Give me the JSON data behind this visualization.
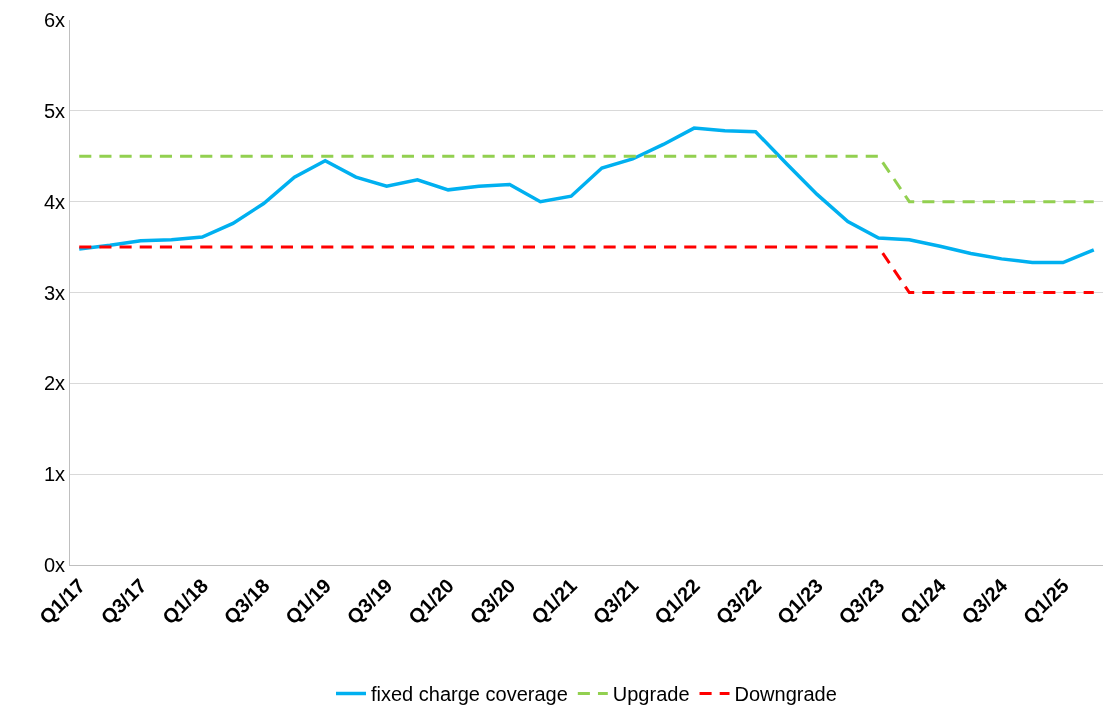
{
  "chart_data": {
    "type": "line",
    "categories": [
      "Q1/17",
      null,
      "Q3/17",
      null,
      "Q1/18",
      null,
      "Q3/18",
      null,
      "Q1/19",
      null,
      "Q3/19",
      null,
      "Q1/20",
      null,
      "Q3/20",
      null,
      "Q1/21",
      null,
      "Q3/21",
      null,
      "Q1/22",
      null,
      "Q3/22",
      null,
      "Q1/23",
      null,
      "Q3/23",
      null,
      "Q1/24",
      null,
      "Q3/24",
      null,
      "Q1/25",
      null
    ],
    "series": [
      {
        "name": "fixed charge coverage",
        "color": "#00b0f0",
        "line_style": "solid",
        "values": [
          3.48,
          3.52,
          3.57,
          3.58,
          3.61,
          3.76,
          3.98,
          4.27,
          4.45,
          4.27,
          4.17,
          4.24,
          4.13,
          4.17,
          4.19,
          4.0,
          4.06,
          4.37,
          4.47,
          4.63,
          4.81,
          4.78,
          4.77,
          4.42,
          4.08,
          3.78,
          3.6,
          3.58,
          3.51,
          3.43,
          3.37,
          3.33,
          3.33,
          3.47
        ]
      },
      {
        "name": "Upgrade",
        "color": "#92d050",
        "line_style": "dashed",
        "values": [
          4.5,
          4.5,
          4.5,
          4.5,
          4.5,
          4.5,
          4.5,
          4.5,
          4.5,
          4.5,
          4.5,
          4.5,
          4.5,
          4.5,
          4.5,
          4.5,
          4.5,
          4.5,
          4.5,
          4.5,
          4.5,
          4.5,
          4.5,
          4.5,
          4.5,
          4.5,
          4.5,
          4.0,
          4.0,
          4.0,
          4.0,
          4.0,
          4.0,
          4.0
        ]
      },
      {
        "name": "Downgrade",
        "color": "#ff0000",
        "line_style": "dashed",
        "values": [
          3.5,
          3.5,
          3.5,
          3.5,
          3.5,
          3.5,
          3.5,
          3.5,
          3.5,
          3.5,
          3.5,
          3.5,
          3.5,
          3.5,
          3.5,
          3.5,
          3.5,
          3.5,
          3.5,
          3.5,
          3.5,
          3.5,
          3.5,
          3.5,
          3.5,
          3.5,
          3.5,
          3.0,
          3.0,
          3.0,
          3.0,
          3.0,
          3.0,
          3.0
        ]
      }
    ],
    "ylim": [
      0,
      6
    ],
    "yticks": [
      {
        "value": 0,
        "label": "0x"
      },
      {
        "value": 1,
        "label": "1x"
      },
      {
        "value": 2,
        "label": "2x"
      },
      {
        "value": 3,
        "label": "3x"
      },
      {
        "value": 4,
        "label": "4x"
      },
      {
        "value": 5,
        "label": "5x"
      },
      {
        "value": 6,
        "label": "6x"
      }
    ],
    "grid": "y",
    "legend": "bottom",
    "marker": "none"
  }
}
